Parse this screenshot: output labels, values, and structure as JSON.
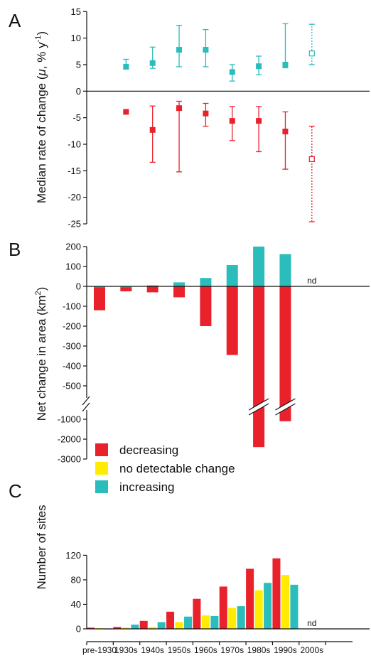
{
  "colors": {
    "decreasing": "#e8212b",
    "no_change": "#ffec00",
    "increasing": "#2bbcbc",
    "axis": "#111111",
    "faded_label": "#aaaaaa"
  },
  "categories": [
    "pre-1930",
    "1930s",
    "1940s",
    "1950s",
    "1960s",
    "1970s",
    "1980s",
    "1990s",
    "2000s"
  ],
  "nd_label": "nd",
  "legend": [
    {
      "key": "decreasing",
      "label": "decreasing"
    },
    {
      "key": "no_change",
      "label": "no detectable change"
    },
    {
      "key": "increasing",
      "label": "increasing"
    }
  ],
  "chart_data": [
    {
      "panel": "A",
      "type": "scatter",
      "ylabel_main": "Median rate of change (",
      "ylabel_sym": "μ",
      "ylabel_rest": ", % y",
      "ylabel_sup": "-1",
      "ylabel_end": ")",
      "ylim": [
        -25,
        15
      ],
      "yticks": [
        15,
        10,
        5,
        0,
        -5,
        -10,
        -15,
        -20,
        -25
      ],
      "series": [
        {
          "name": "increasing",
          "points": [
            {
              "x": "1930s",
              "y": 4.6,
              "lo": 4.2,
              "hi": 6.0
            },
            {
              "x": "1940s",
              "y": 5.3,
              "lo": 4.3,
              "hi": 8.3
            },
            {
              "x": "1950s",
              "y": 7.8,
              "lo": 4.6,
              "hi": 12.4
            },
            {
              "x": "1960s",
              "y": 7.8,
              "lo": 4.6,
              "hi": 11.6
            },
            {
              "x": "1970s",
              "y": 3.6,
              "lo": 1.9,
              "hi": 5.0
            },
            {
              "x": "1980s",
              "y": 4.7,
              "lo": 3.1,
              "hi": 6.6
            },
            {
              "x": "1990s",
              "y": 5.0,
              "lo": 4.4,
              "hi": 12.7
            },
            {
              "x": "2000s",
              "y": 7.1,
              "lo": 5.0,
              "hi": 12.6,
              "open": true
            }
          ]
        },
        {
          "name": "decreasing",
          "points": [
            {
              "x": "1930s",
              "y": -3.9,
              "lo": -3.9,
              "hi": -3.9
            },
            {
              "x": "1940s",
              "y": -7.3,
              "lo": -13.4,
              "hi": -2.8
            },
            {
              "x": "1950s",
              "y": -3.2,
              "lo": -15.2,
              "hi": -1.9
            },
            {
              "x": "1960s",
              "y": -4.2,
              "lo": -6.6,
              "hi": -2.3
            },
            {
              "x": "1970s",
              "y": -5.6,
              "lo": -9.3,
              "hi": -2.9
            },
            {
              "x": "1980s",
              "y": -5.6,
              "lo": -11.4,
              "hi": -2.9
            },
            {
              "x": "1990s",
              "y": -7.6,
              "lo": -14.7,
              "hi": -3.9
            },
            {
              "x": "2000s",
              "y": -12.8,
              "lo": -24.6,
              "hi": -6.6,
              "open": true
            }
          ]
        }
      ]
    },
    {
      "panel": "B",
      "type": "bar",
      "ylabel_main": "Net change in area (km",
      "ylabel_sup": "2",
      "ylabel_end": ")",
      "yticks_upper": [
        200,
        100,
        0,
        -100,
        -200,
        -300,
        -400,
        -500
      ],
      "yticks_lower": [
        -1000,
        -2000,
        -3000
      ],
      "axis_break": [
        -550,
        -950
      ],
      "series": [
        {
          "name": "decreasing",
          "values": [
            -120,
            -25,
            -30,
            -55,
            -200,
            -345,
            -2400,
            -1100,
            null
          ]
        },
        {
          "name": "increasing",
          "values": [
            -5,
            -5,
            5,
            20,
            42,
            107,
            200,
            162,
            null
          ]
        }
      ]
    },
    {
      "panel": "C",
      "type": "bar",
      "ylabel": "Number of sites",
      "ylim": [
        0,
        120
      ],
      "yticks": [
        0,
        40,
        80,
        120
      ],
      "series": [
        {
          "name": "decreasing",
          "values": [
            2,
            3,
            13,
            28,
            49,
            69,
            98,
            115,
            null
          ]
        },
        {
          "name": "no detectable change",
          "values": [
            1,
            2,
            3,
            11,
            22,
            34,
            63,
            88,
            null
          ]
        },
        {
          "name": "increasing",
          "values": [
            0,
            7,
            11,
            20,
            21,
            37,
            75,
            72,
            null
          ]
        }
      ]
    }
  ]
}
